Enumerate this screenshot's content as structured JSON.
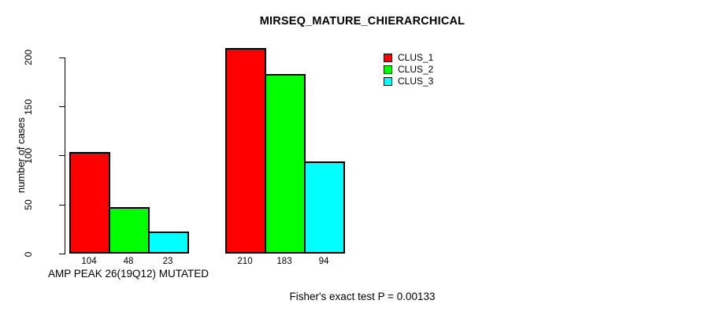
{
  "chart_data": {
    "type": "bar",
    "title": "MIRSEQ_MATURE_CHIERARCHICAL",
    "ylabel": "number of cases",
    "xlabel": "",
    "categories": [
      "AMP PEAK 26(19Q12) MUTATED",
      ""
    ],
    "series": [
      {
        "name": "CLUS_1",
        "color": "#ff0000",
        "values": [
          104,
          210
        ]
      },
      {
        "name": "CLUS_2",
        "color": "#00ff00",
        "values": [
          48,
          183
        ]
      },
      {
        "name": "CLUS_3",
        "color": "#00ffff",
        "values": [
          23,
          94
        ]
      }
    ],
    "yticks": [
      0,
      50,
      100,
      150,
      200
    ],
    "ylim": [
      0,
      200
    ],
    "bar_value_labels_shown": true,
    "grid": false,
    "legend_position": "top-right",
    "annotation": "Fisher's exact test P = 0.00133"
  },
  "legend": {
    "items": [
      {
        "label": "CLUS_1",
        "color": "#ff0000"
      },
      {
        "label": "CLUS_2",
        "color": "#00ff00"
      },
      {
        "label": "CLUS_3",
        "color": "#00ffff"
      }
    ]
  },
  "colors": {
    "background": "#ffffff",
    "axis": "#000000",
    "text": "#000000"
  }
}
